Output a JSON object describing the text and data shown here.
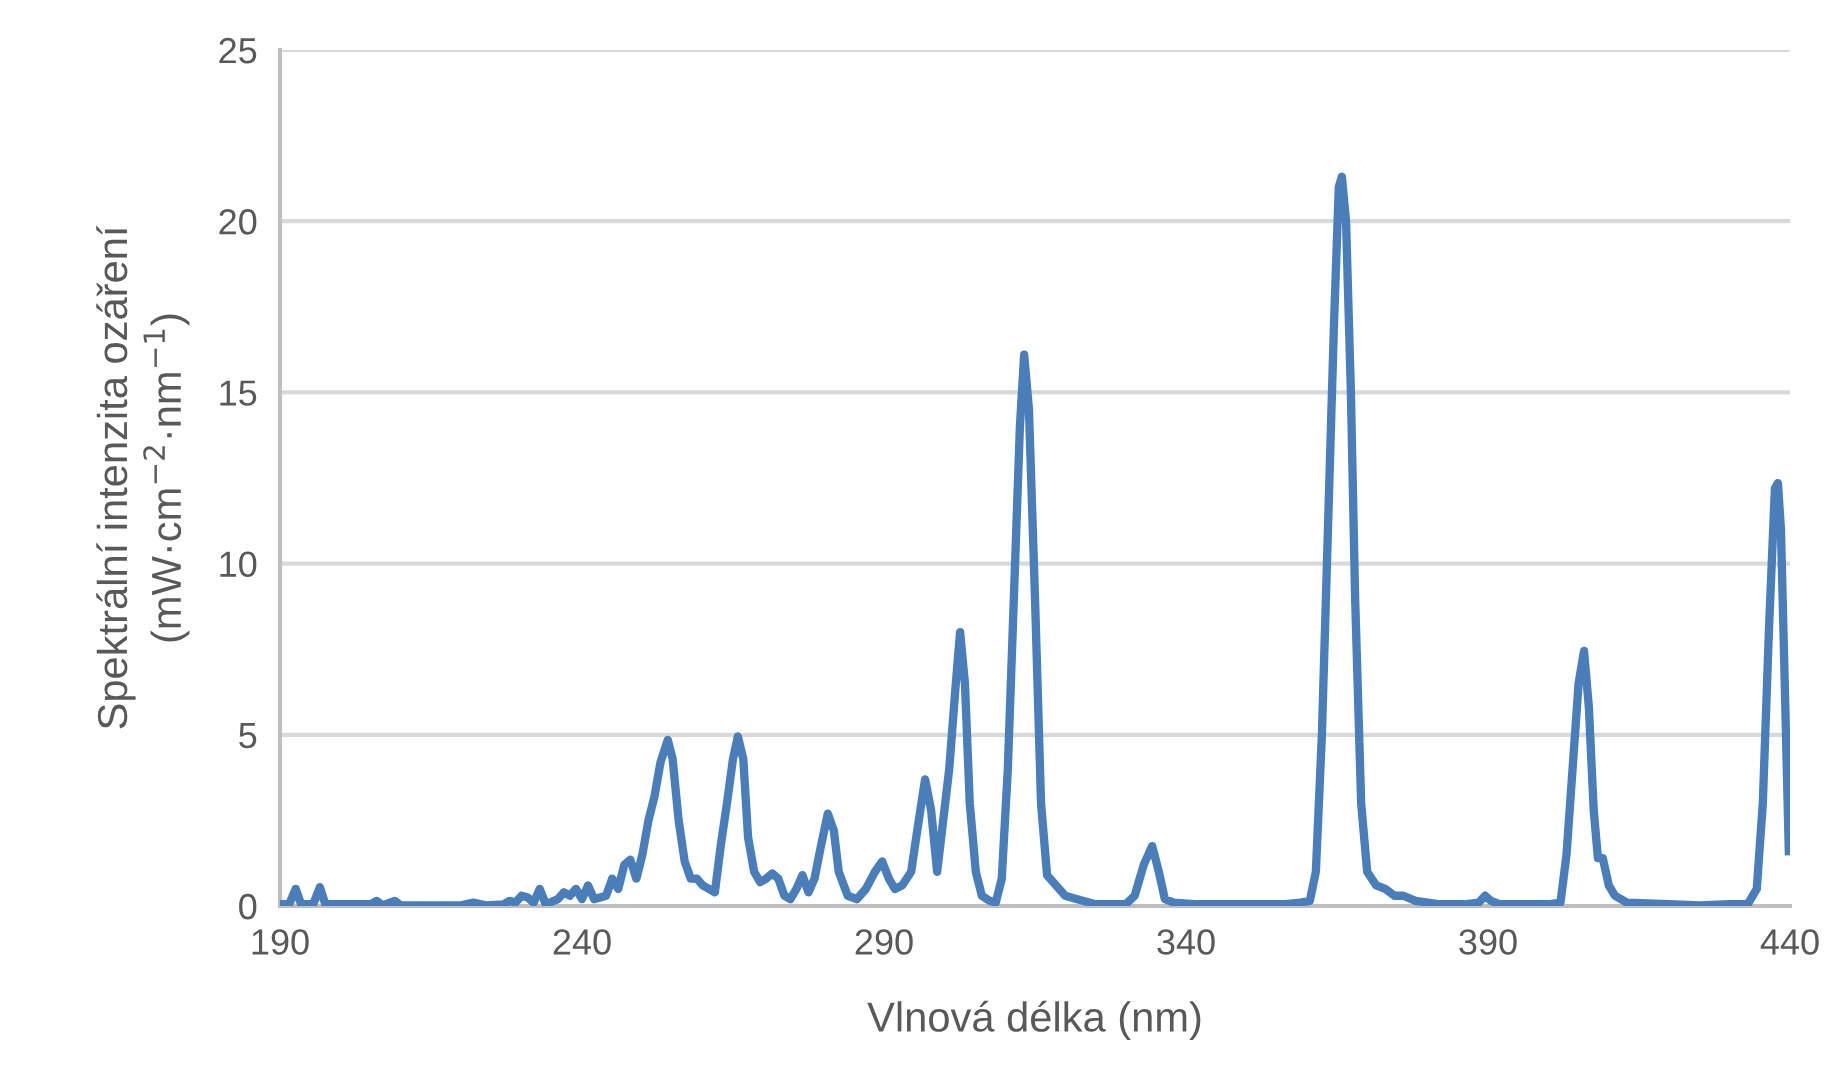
{
  "chart_data": {
    "type": "line",
    "xlabel": "Vlnová délka (nm)",
    "ylabel": "Spektrální intenzita ozáření\n(mW·cm$^{−2}$·nm$^{−1}$)",
    "xlim": [
      190,
      440
    ],
    "xticks": [
      190,
      240,
      290,
      340,
      390,
      440
    ],
    "ylim": [
      0,
      25
    ],
    "yticks": [
      0,
      5,
      10,
      15,
      20,
      25
    ],
    "grid": "y",
    "legend": false,
    "marker": "none",
    "line_style": "solid",
    "series": [
      {
        "color": "#4a7ebb",
        "x": [
          190,
          191.5,
          192.6,
          193.5,
          195.5,
          196.6,
          197.5,
          205,
          206,
          207,
          209,
          210,
          220,
          222,
          224,
          227,
          228,
          229,
          230,
          231,
          232,
          233,
          234,
          236,
          237,
          238,
          239,
          240,
          241,
          242,
          244,
          245,
          246,
          247,
          248,
          249,
          250,
          251,
          252,
          253,
          254.2,
          255,
          256,
          257,
          258,
          259,
          260,
          261,
          262,
          263,
          264,
          265,
          265.8,
          266.7,
          267.5,
          268.5,
          269.5,
          270.5,
          271.5,
          272.5,
          273.5,
          274.5,
          275.5,
          276.5,
          277.5,
          278.5,
          279.5,
          280.7,
          281.7,
          282.5,
          284,
          285.5,
          287,
          288.5,
          289.7,
          290.8,
          291.8,
          293,
          294.5,
          295.5,
          296.8,
          297.8,
          298.8,
          299.8,
          300.8,
          301.8,
          302.6,
          303.4,
          304.2,
          305.2,
          306.2,
          307.5,
          308.5,
          309.5,
          310.5,
          311.5,
          312.5,
          313.2,
          314,
          315,
          316,
          317,
          318.5,
          320,
          322,
          325,
          328,
          330,
          331.5,
          333,
          334.4,
          335.5,
          336.5,
          338,
          342,
          350,
          356,
          359,
          360.5,
          361.5,
          362.5,
          363.5,
          364.5,
          365.3,
          365.8,
          366.5,
          367.3,
          368,
          369,
          370,
          371.5,
          373,
          374.5,
          376,
          378,
          382,
          386,
          388.5,
          389.5,
          390.5,
          392,
          400,
          402,
          403,
          404,
          405,
          405.9,
          406.7,
          407.5,
          408.2,
          409,
          410,
          411,
          413,
          420,
          425,
          430,
          433,
          434.5,
          435.5,
          436.5,
          437.5,
          438,
          438.5,
          439.2,
          439.8
        ],
        "values": [
          0.05,
          0.05,
          0.5,
          0.05,
          0.05,
          0.55,
          0.05,
          0.05,
          0.15,
          0.02,
          0.15,
          0.02,
          0.02,
          0.1,
          0.02,
          0.05,
          0.15,
          0.1,
          0.3,
          0.25,
          0.1,
          0.5,
          0.05,
          0.2,
          0.4,
          0.3,
          0.5,
          0.2,
          0.6,
          0.2,
          0.3,
          0.8,
          0.5,
          1.2,
          1.35,
          0.8,
          1.5,
          2.5,
          3.2,
          4.2,
          4.85,
          4.3,
          2.5,
          1.3,
          0.8,
          0.8,
          0.6,
          0.5,
          0.4,
          1.8,
          3.0,
          4.3,
          4.95,
          4.3,
          2.0,
          1.0,
          0.7,
          0.8,
          0.95,
          0.8,
          0.3,
          0.2,
          0.5,
          0.9,
          0.4,
          0.8,
          1.7,
          2.7,
          2.2,
          1.0,
          0.3,
          0.2,
          0.5,
          1.0,
          1.3,
          0.8,
          0.5,
          0.6,
          1.0,
          2.2,
          3.7,
          2.8,
          1.0,
          2.5,
          4.0,
          6.3,
          8.0,
          6.5,
          3.0,
          1.0,
          0.3,
          0.15,
          0.1,
          0.8,
          4.0,
          9.0,
          14.0,
          16.1,
          14.5,
          9.0,
          3.0,
          0.9,
          0.6,
          0.3,
          0.2,
          0.05,
          0.05,
          0.05,
          0.3,
          1.2,
          1.75,
          1.0,
          0.2,
          0.1,
          0.05,
          0.05,
          0.05,
          0.1,
          0.15,
          1.0,
          5.0,
          11.0,
          17.0,
          21.0,
          21.3,
          20.0,
          15.0,
          9.0,
          3.0,
          1.0,
          0.6,
          0.5,
          0.3,
          0.3,
          0.15,
          0.05,
          0.05,
          0.1,
          0.3,
          0.15,
          0.05,
          0.05,
          0.1,
          1.5,
          4.0,
          6.5,
          7.45,
          5.8,
          2.8,
          1.4,
          1.4,
          0.6,
          0.3,
          0.1,
          0.05,
          0.02,
          0.05,
          0.05,
          0.5,
          3.0,
          8.0,
          12.2,
          12.35,
          11.0,
          6.0,
          1.6
        ]
      }
    ]
  }
}
